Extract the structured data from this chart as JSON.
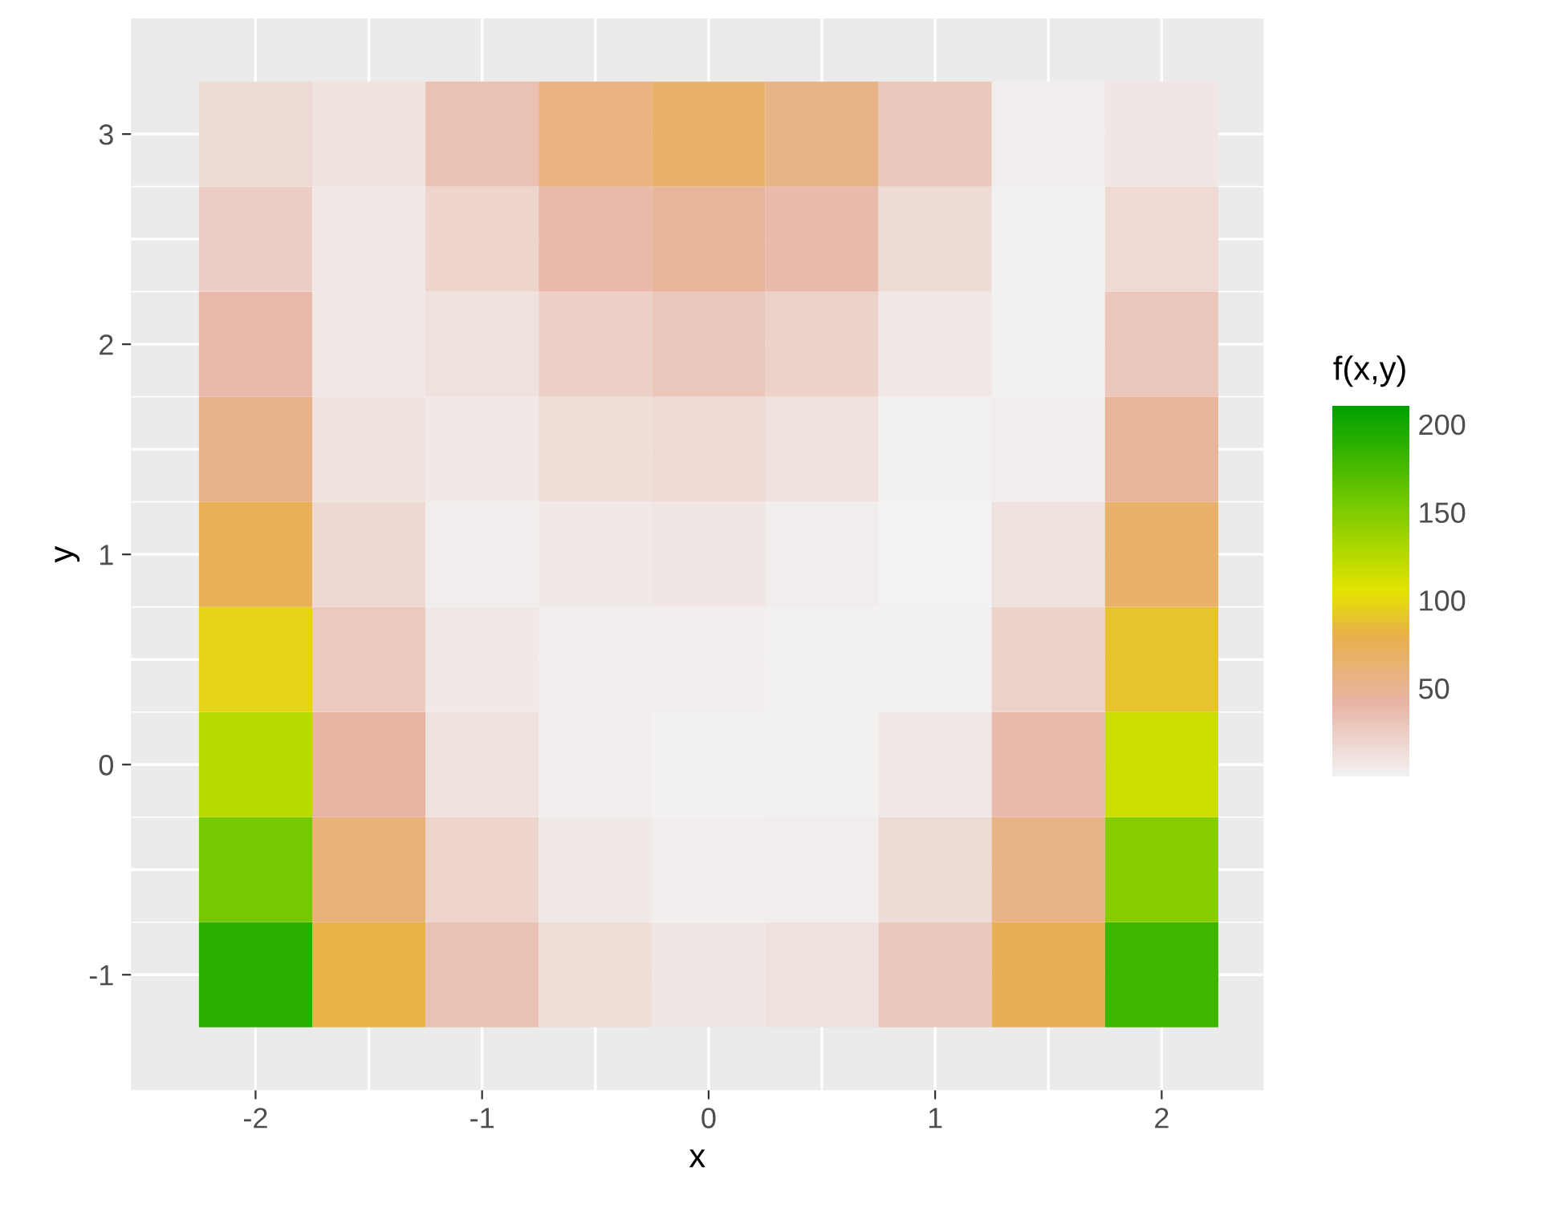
{
  "chart_data": {
    "type": "heatmap",
    "xlabel": "x",
    "ylabel": "y",
    "clabel": "f(x,y)",
    "categories": [
      "-2",
      null,
      "-1",
      null,
      "0",
      null,
      "1",
      null,
      "2"
    ],
    "y_categories": [
      "3",
      null,
      "2",
      null,
      "1",
      null,
      "0",
      null,
      "-1"
    ],
    "cells": [
      [
        16,
        10,
        33,
        57,
        66,
        55,
        29,
        4,
        8
      ],
      [
        25,
        7,
        20,
        39,
        46,
        37,
        16,
        1,
        17
      ],
      [
        38,
        7,
        11,
        24,
        30,
        22,
        7,
        1,
        30
      ],
      [
        54,
        10,
        6,
        14,
        17,
        12,
        2,
        4,
        46
      ],
      [
        74,
        18,
        4,
        6,
        8,
        4,
        0,
        12,
        66
      ],
      [
        97,
        28,
        6,
        3,
        3,
        1,
        2,
        22,
        89
      ],
      [
        124,
        43,
        11,
        3,
        1,
        1,
        7,
        37,
        116
      ],
      [
        155,
        61,
        20,
        6,
        3,
        4,
        16,
        55,
        147
      ],
      [
        189,
        82,
        33,
        14,
        8,
        12,
        29,
        76,
        181
      ]
    ],
    "clim": [
      0,
      210
    ],
    "cticks": [
      50,
      100,
      150,
      200
    ],
    "grid": true
  }
}
